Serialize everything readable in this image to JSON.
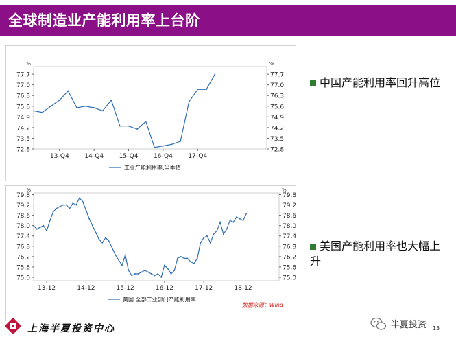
{
  "slide": {
    "title": "全球制造业产能利用率上台阶",
    "page_number": "13",
    "source_note": "数据来源：Wind",
    "company": "上海半夏投资中心",
    "wechat_account": "半夏投资",
    "bullets": [
      "中国产能利用率回升高位",
      "美国产能利用率也大幅上升"
    ],
    "bullet_color": "#2e7d32"
  },
  "chart_data": [
    {
      "type": "line",
      "unit_left": "%",
      "unit_right": "%",
      "yticks": [
        "77.7",
        "77.0",
        "76.3",
        "75.6",
        "74.9",
        "74.2",
        "73.5",
        "72.8"
      ],
      "ylim": [
        72.8,
        78.2
      ],
      "xlim": [
        0,
        27
      ],
      "xticks": [
        {
          "x": 3,
          "label": "13-Q4"
        },
        {
          "x": 7,
          "label": "14-Q4"
        },
        {
          "x": 11,
          "label": "15-Q4"
        },
        {
          "x": 15,
          "label": "16-Q4"
        },
        {
          "x": 19,
          "label": "17-Q4"
        }
      ],
      "series": [
        {
          "name": "工业产能利用率:当季值",
          "color": "#2f6eb5",
          "x": [
            0,
            1,
            2,
            3,
            4,
            5,
            6,
            7,
            8,
            9,
            10,
            11,
            12,
            13,
            14,
            15,
            16,
            17,
            18,
            19,
            20,
            21
          ],
          "values": [
            75.3,
            75.2,
            75.6,
            76.0,
            76.6,
            75.5,
            75.6,
            75.5,
            75.3,
            76.0,
            74.3,
            74.3,
            74.1,
            74.6,
            72.9,
            73.0,
            73.1,
            73.3,
            75.9,
            76.7,
            76.7,
            77.7
          ]
        }
      ]
    },
    {
      "type": "line",
      "unit_left": "%",
      "unit_right": "%",
      "yticks": [
        "79.8",
        "79.2",
        "78.6",
        "78.0",
        "77.4",
        "76.8",
        "76.2",
        "75.6",
        "75.0"
      ],
      "ylim": [
        74.8,
        79.9
      ],
      "xlim": [
        0,
        75
      ],
      "xticks": [
        {
          "x": 4,
          "label": "13-12"
        },
        {
          "x": 16,
          "label": "14-12"
        },
        {
          "x": 28,
          "label": "15-12"
        },
        {
          "x": 40,
          "label": "16-12"
        },
        {
          "x": 52,
          "label": "17-12"
        },
        {
          "x": 64,
          "label": "18-12"
        }
      ],
      "series": [
        {
          "name": "美国:全部工业部门产能利用率",
          "color": "#2f6eb5",
          "x": [
            0,
            1,
            2,
            3,
            4,
            5,
            6,
            7,
            8,
            9,
            10,
            11,
            12,
            13,
            14,
            15,
            16,
            17,
            18,
            19,
            20,
            21,
            22,
            23,
            24,
            25,
            26,
            27,
            28,
            29,
            30,
            31,
            32,
            33,
            34,
            35,
            36,
            37,
            38,
            39,
            40,
            41,
            42,
            43,
            44,
            45,
            46,
            47,
            48,
            49,
            50,
            51,
            52,
            53,
            54,
            55,
            56,
            57,
            58,
            59,
            60,
            61,
            62,
            63,
            64,
            65
          ],
          "values": [
            78.0,
            77.8,
            77.9,
            78.0,
            77.7,
            78.3,
            78.8,
            79.0,
            79.1,
            79.2,
            79.2,
            79.0,
            79.3,
            79.2,
            79.6,
            79.4,
            78.9,
            78.4,
            78.0,
            77.6,
            77.2,
            77.0,
            77.3,
            77.1,
            76.7,
            76.3,
            76.0,
            75.7,
            76.3,
            75.4,
            75.1,
            75.2,
            75.2,
            75.3,
            75.4,
            75.3,
            75.2,
            75.1,
            75.2,
            75.0,
            75.7,
            75.5,
            75.2,
            75.4,
            76.1,
            76.2,
            76.1,
            76.1,
            75.9,
            75.8,
            76.1,
            77.0,
            77.3,
            77.4,
            77.0,
            77.5,
            77.7,
            78.2,
            77.5,
            77.8,
            78.3,
            78.2,
            78.5,
            78.4,
            78.3,
            78.7
          ]
        }
      ]
    }
  ]
}
